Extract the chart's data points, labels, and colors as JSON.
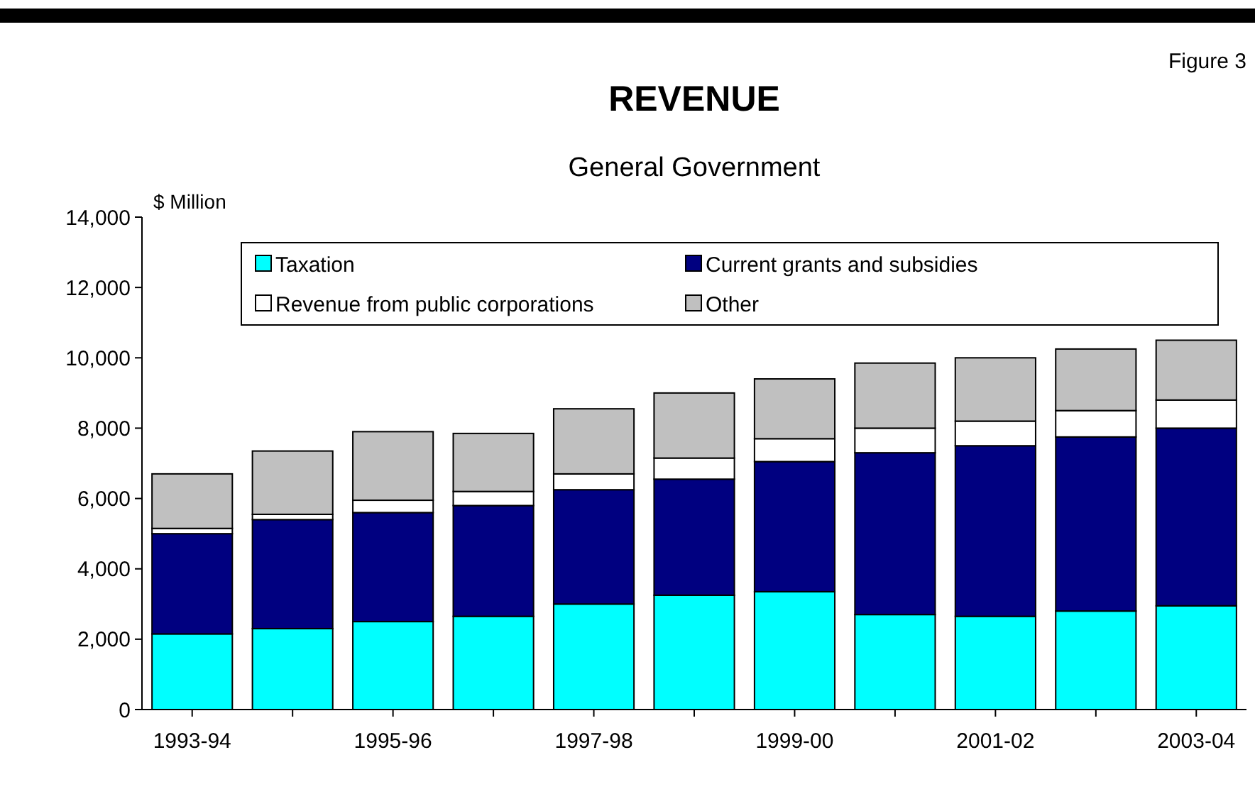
{
  "chart_data": {
    "type": "bar",
    "stacked": true,
    "title": "REVENUE",
    "subtitle": "General Government",
    "ylabel": "$ Million",
    "annotations": [
      "Figure 3"
    ],
    "categories": [
      "1993-94",
      null,
      "1995-96",
      null,
      "1997-98",
      null,
      "1999-00",
      null,
      "2001-02",
      null,
      "2003-04"
    ],
    "ylim": [
      0,
      14000
    ],
    "yticks": [
      {
        "value": 0,
        "label": "0"
      },
      {
        "value": 2000,
        "label": "2,000"
      },
      {
        "value": 4000,
        "label": "4,000"
      },
      {
        "value": 6000,
        "label": "6,000"
      },
      {
        "value": 8000,
        "label": "8,000"
      },
      {
        "value": 10000,
        "label": "10,000"
      },
      {
        "value": 12000,
        "label": "12,000"
      },
      {
        "value": 14000,
        "label": "14,000"
      }
    ],
    "grid": false,
    "legend": "top",
    "series": [
      {
        "name": "Taxation",
        "color": "#00ffff",
        "values": [
          2150,
          2300,
          2500,
          2650,
          3000,
          3250,
          3350,
          2700,
          2650,
          2800,
          2950
        ]
      },
      {
        "name": "Current grants and subsidies",
        "color": "#000080",
        "values": [
          2850,
          3100,
          3100,
          3150,
          3250,
          3300,
          3700,
          4600,
          4850,
          4950,
          5050
        ]
      },
      {
        "name": "Revenue from public corporations",
        "color": "#ffffff",
        "values": [
          150,
          150,
          350,
          400,
          450,
          600,
          650,
          700,
          700,
          750,
          800
        ]
      },
      {
        "name": "Other",
        "color": "#c0c0c0",
        "values": [
          1550,
          1800,
          1950,
          1650,
          1850,
          1850,
          1700,
          1850,
          1800,
          1750,
          1700
        ]
      }
    ]
  }
}
